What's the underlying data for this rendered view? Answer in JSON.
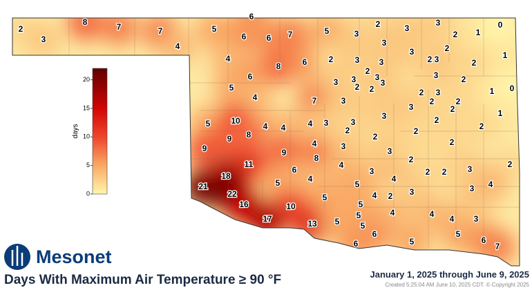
{
  "brand": "Mesonet",
  "title": "Days With Maximum Air Temperature ≥ 90 °F",
  "date_range": "January 1, 2025 through June 9, 2025",
  "created": "Created 5:25:04 AM June 10, 2025 CDT. © Copyright 2025",
  "legend": {
    "label": "days",
    "lim": [
      0,
      22
    ],
    "ticks": [
      0,
      5,
      10,
      15,
      20
    ]
  },
  "stations": [
    2,
    3,
    8,
    7,
    7,
    4,
    5,
    6,
    6,
    6,
    7,
    5,
    3,
    2,
    3,
    3,
    2,
    1,
    0,
    3,
    2,
    3,
    2,
    1,
    3,
    2,
    4,
    8,
    6,
    2,
    3,
    3,
    2,
    3,
    3,
    2,
    2,
    3,
    6,
    5,
    4,
    7,
    3,
    3,
    3,
    2,
    3,
    1,
    0,
    2,
    2,
    2,
    2,
    1,
    3,
    5,
    10,
    4,
    4,
    4,
    3,
    3,
    2,
    3,
    2,
    2,
    2,
    9,
    8,
    2,
    2,
    4,
    3,
    3,
    9,
    9,
    11,
    8,
    2,
    4,
    2,
    3,
    6,
    3,
    2,
    2,
    21,
    18,
    22,
    16,
    5,
    4,
    5,
    4,
    3,
    4,
    3,
    4,
    2,
    5,
    5,
    10,
    17,
    4,
    4,
    4,
    3,
    13,
    5,
    5,
    5,
    6,
    6,
    5,
    5,
    6,
    7
  ]
}
